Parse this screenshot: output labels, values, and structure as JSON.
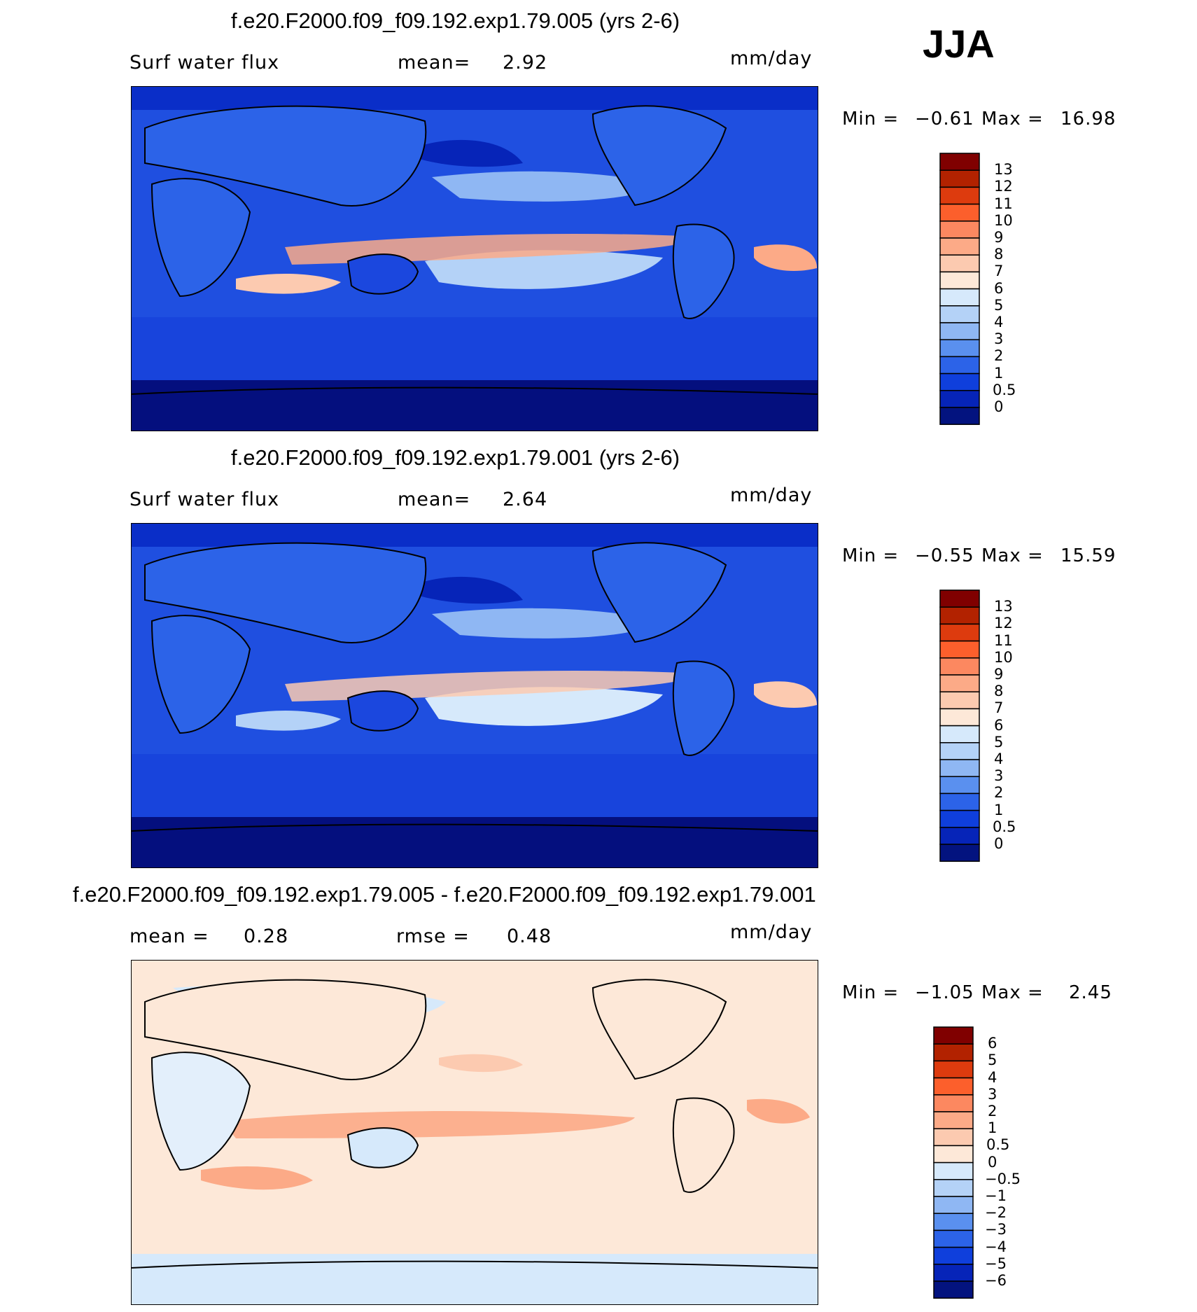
{
  "season": "JJA",
  "panels": [
    {
      "id": "case1",
      "title": "f.e20.F2000.f09_f09.192.exp1.79.005 (yrs 2-6)",
      "left_label": "Surf water flux",
      "stat_label": "mean=",
      "stat_value": "2.92",
      "units": "mm/day",
      "min_label": "Min =",
      "min_value": "−0.61",
      "max_label": "Max =",
      "max_value": "16.98",
      "palette": "precip"
    },
    {
      "id": "case2",
      "title": "f.e20.F2000.f09_f09.192.exp1.79.001 (yrs 2-6)",
      "left_label": "Surf water flux",
      "stat_label": "mean=",
      "stat_value": "2.64",
      "units": "mm/day",
      "min_label": "Min =",
      "min_value": "−0.55",
      "max_label": "Max =",
      "max_value": "15.59",
      "palette": "precip"
    },
    {
      "id": "diff",
      "title": "f.e20.F2000.f09_f09.192.exp1.79.005 - f.e20.F2000.f09_f09.192.exp1.79.001",
      "left_label": "mean =",
      "left_value": "0.28",
      "stat_label": "rmse =",
      "stat_value": "0.48",
      "units": "mm/day",
      "min_label": "Min =",
      "min_value": "−1.05",
      "max_label": "Max =",
      "max_value": "2.45",
      "palette": "diff"
    }
  ],
  "colorbars": {
    "precip": {
      "labels": [
        "13",
        "12",
        "11",
        "10",
        "9",
        "8",
        "7",
        "6",
        "5",
        "4",
        "3",
        "2",
        "1",
        "0.5",
        "0"
      ],
      "colors": [
        "#800000",
        "#b22200",
        "#dd3b0e",
        "#fc5f2c",
        "#fc8860",
        "#fcaa87",
        "#fccab0",
        "#fde8d8",
        "#d6e9fb",
        "#b4d2f7",
        "#8fb7f3",
        "#5a90ef",
        "#2c63e8",
        "#0f3fdc",
        "#0624b8",
        "#03137f"
      ]
    },
    "diff": {
      "labels": [
        "6",
        "5",
        "4",
        "3",
        "2",
        "1",
        "0.5",
        "0",
        "−0.5",
        "−1",
        "−2",
        "−3",
        "−4",
        "−5",
        "−6"
      ],
      "colors": [
        "#800000",
        "#b22200",
        "#dd3b0e",
        "#fc5f2c",
        "#fc8860",
        "#fcaa87",
        "#fccab0",
        "#fde8d8",
        "#d6e9fb",
        "#b4d2f7",
        "#8fb7f3",
        "#5a90ef",
        "#2c63e8",
        "#0f3fdc",
        "#0624b8",
        "#03137f"
      ]
    }
  },
  "chart_data": [
    {
      "type": "heatmap",
      "title": "f.e20.F2000.f09_f09.192.exp1.79.005 (yrs 2-6)",
      "variable": "Surf water flux",
      "units": "mm/day",
      "season": "JJA",
      "mean": 2.92,
      "min": -0.61,
      "max": 16.98,
      "contour_levels": [
        0,
        0.5,
        1,
        2,
        3,
        4,
        5,
        6,
        7,
        8,
        9,
        10,
        11,
        12,
        13
      ]
    },
    {
      "type": "heatmap",
      "title": "f.e20.F2000.f09_f09.192.exp1.79.001 (yrs 2-6)",
      "variable": "Surf water flux",
      "units": "mm/day",
      "season": "JJA",
      "mean": 2.64,
      "min": -0.55,
      "max": 15.59,
      "contour_levels": [
        0,
        0.5,
        1,
        2,
        3,
        4,
        5,
        6,
        7,
        8,
        9,
        10,
        11,
        12,
        13
      ]
    },
    {
      "type": "heatmap",
      "title": "f.e20.F2000.f09_f09.192.exp1.79.005 - f.e20.F2000.f09_f09.192.exp1.79.001",
      "units": "mm/day",
      "season": "JJA",
      "mean": 0.28,
      "rmse": 0.48,
      "min": -1.05,
      "max": 2.45,
      "contour_levels": [
        -6,
        -5,
        -4,
        -3,
        -2,
        -1,
        -0.5,
        0,
        0.5,
        1,
        2,
        3,
        4,
        5,
        6
      ]
    }
  ]
}
